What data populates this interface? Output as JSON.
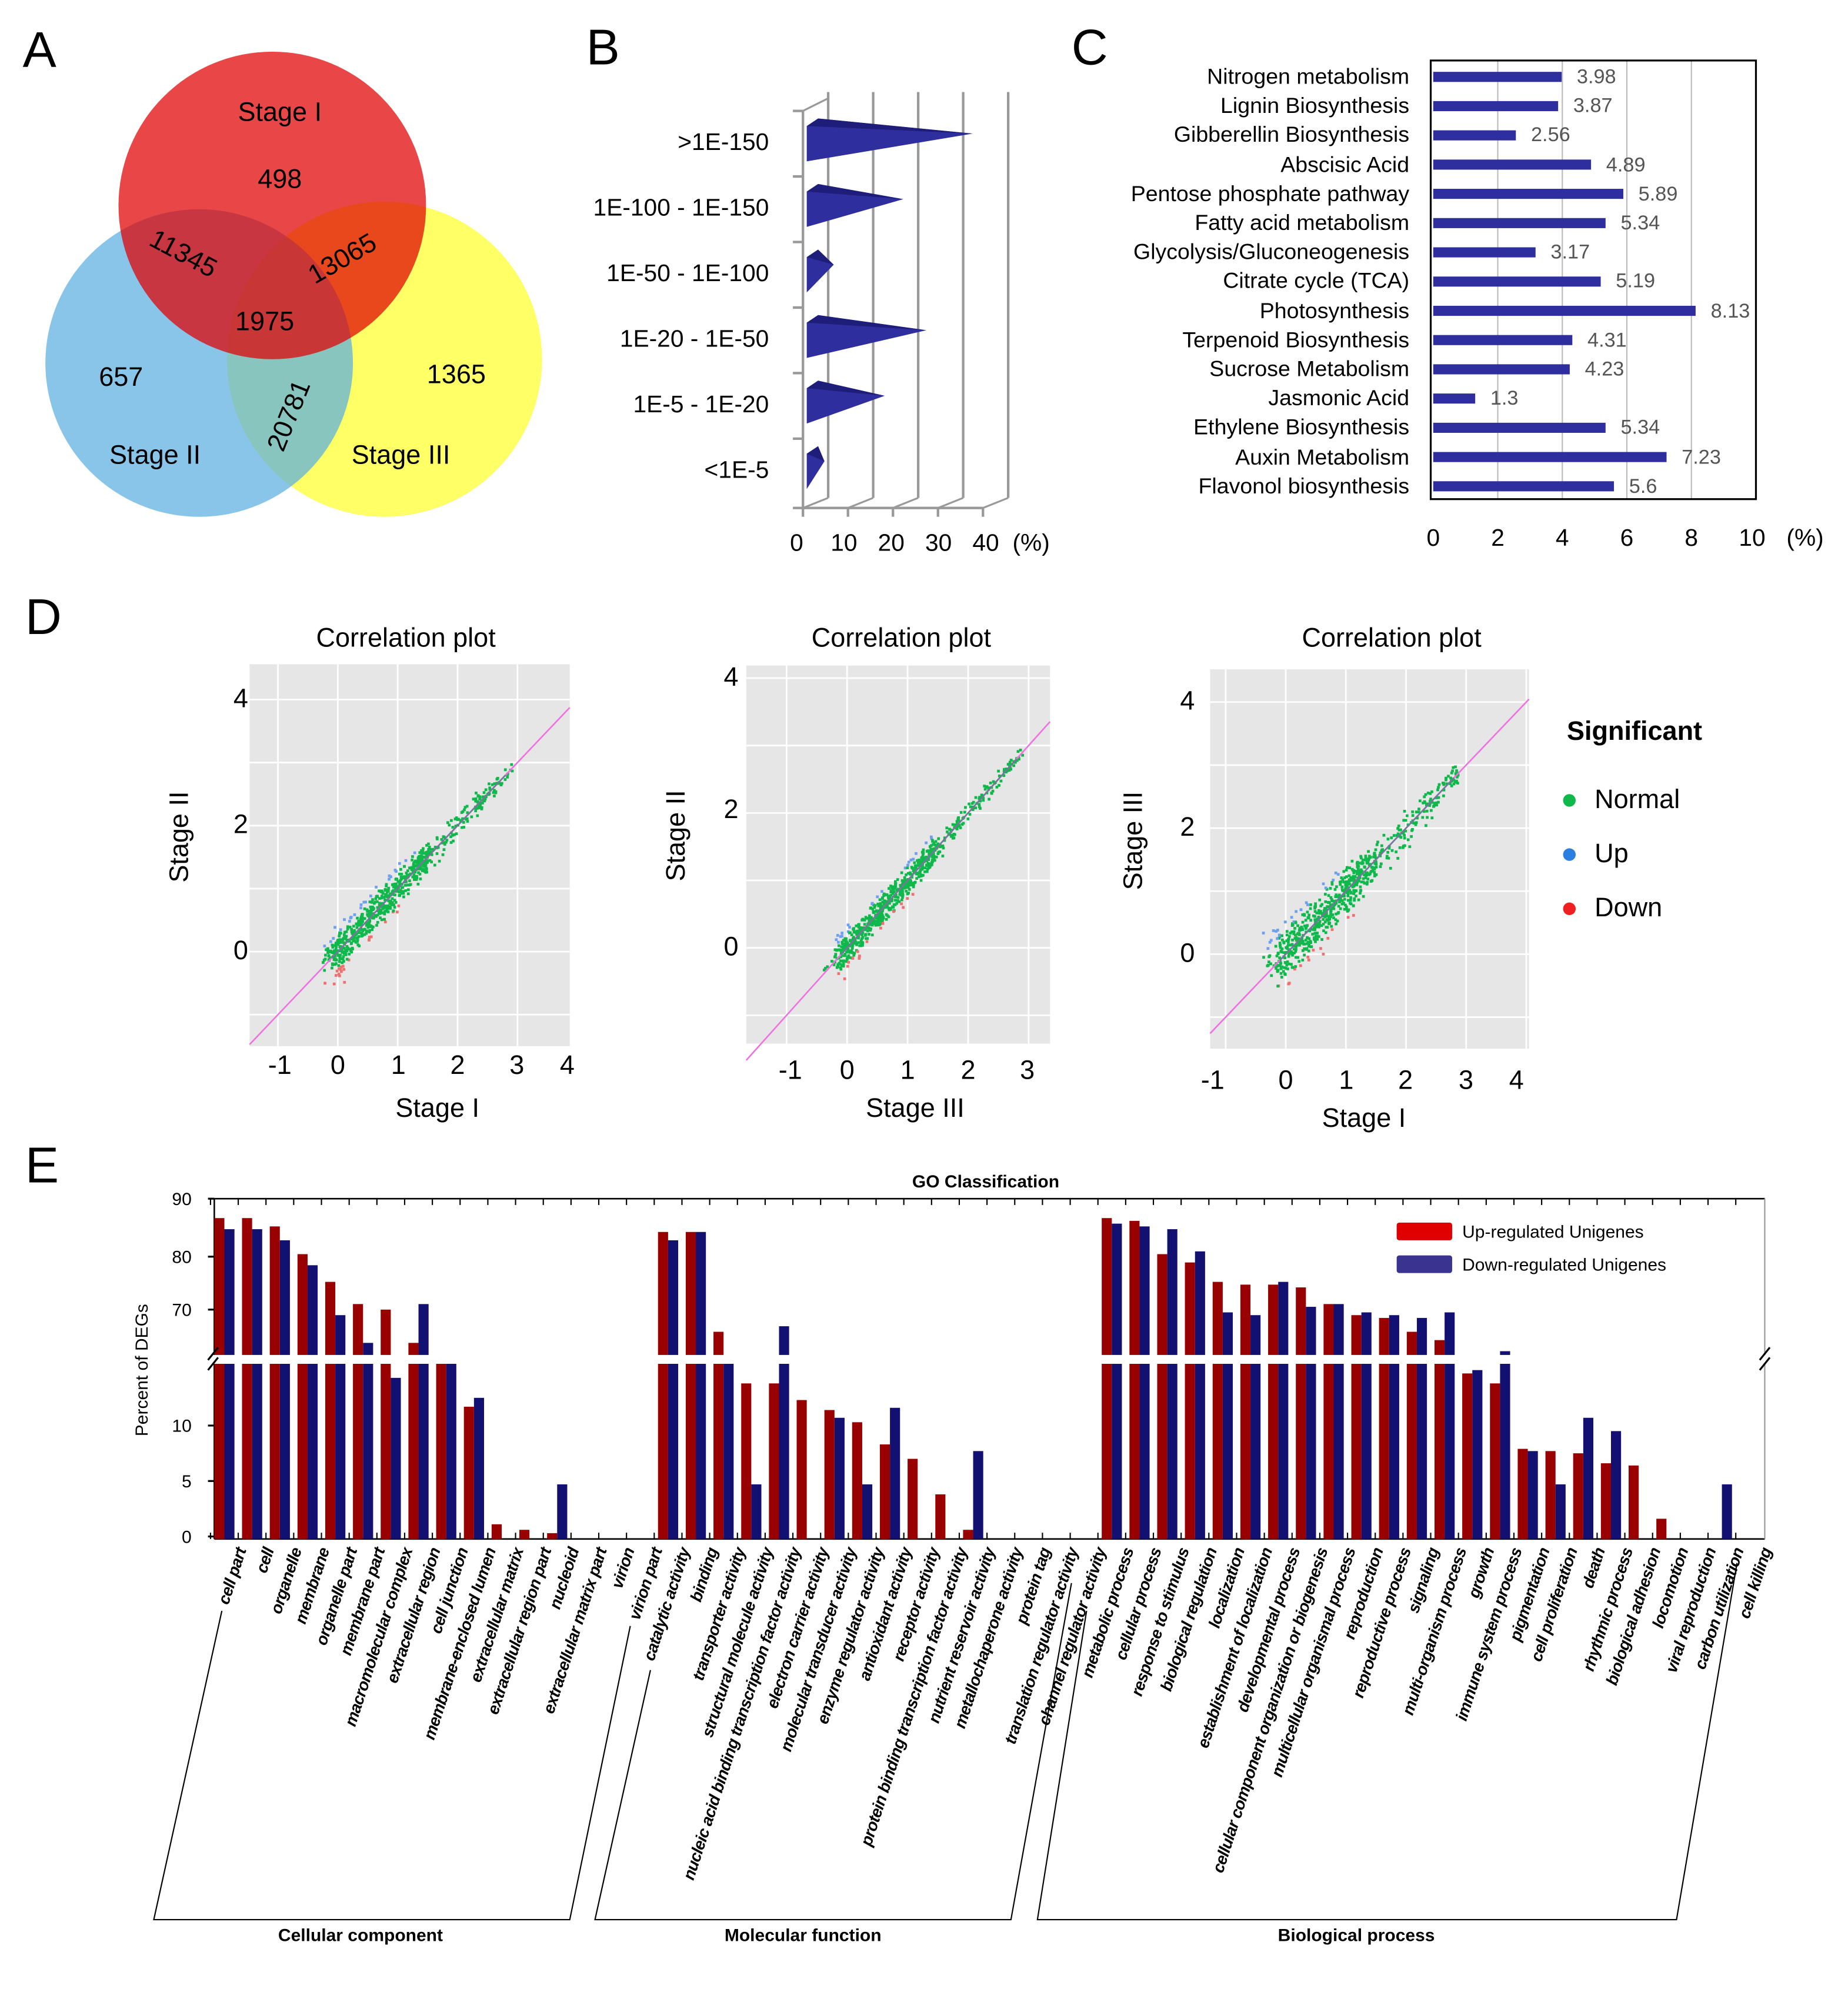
{
  "panels": {
    "a": "A",
    "b": "B",
    "c": "C",
    "d": "D",
    "e": "E"
  },
  "venn": {
    "sets": [
      "Stage I",
      "Stage II",
      "Stage III"
    ],
    "only_I": "498",
    "I_II": "11345",
    "I_III": "13065",
    "all": "1975",
    "only_II": "657",
    "only_III": "1365",
    "II_III": "20781",
    "colors": {
      "stage1": "#e00000",
      "stage2": "#5aaee0",
      "stage3": "#ffff66"
    }
  },
  "chart_data": [
    {
      "id": "B",
      "type": "bar",
      "orientation": "horizontal-3d",
      "categories": [
        ">1E-150",
        "1E-100 - 1E-150",
        "1E-50 - 1E-100",
        "1E-20 - 1E-50",
        "1E-5 - 1E-20",
        "<1E-5"
      ],
      "values": [
        35,
        20,
        5,
        25,
        16,
        3
      ],
      "xticks": [
        "0",
        "10",
        "20",
        "30",
        "40"
      ],
      "xunit": "(%)",
      "xlim": [
        0,
        40
      ],
      "color": "#2e2e9e"
    },
    {
      "id": "C",
      "type": "bar",
      "orientation": "horizontal",
      "categories": [
        "Nitrogen metabolism",
        "Lignin Biosynthesis",
        "Gibberellin Biosynthesis",
        "Abscisic Acid",
        "Pentose phosphate pathway",
        "Fatty acid metabolism",
        "Glycolysis/Gluconeogenesis",
        "Citrate cycle  (TCA)",
        "Photosynthesis",
        "Terpenoid Biosynthesis",
        "Sucrose Metabolism",
        "Jasmonic Acid",
        "Ethylene Biosynthesis",
        "Auxin Metabolism",
        "Flavonol biosynthesis"
      ],
      "values": [
        3.98,
        3.87,
        2.56,
        4.89,
        5.89,
        5.34,
        3.17,
        5.19,
        8.13,
        4.31,
        4.23,
        1.3,
        5.34,
        7.23,
        5.6
      ],
      "value_labels": [
        "3.98",
        "3.87",
        "2.56",
        "4.89",
        "5.89",
        "5.34",
        "3.17",
        "5.19",
        "8.13",
        "4.31",
        "4.23",
        "1.3",
        "5.34",
        "7.23",
        "5.6"
      ],
      "xticks": [
        "0",
        "2",
        "4",
        "6",
        "8",
        "10"
      ],
      "xunit": "(%)",
      "xlim": [
        0,
        10
      ],
      "color": "#2e2e9e"
    },
    {
      "id": "D1",
      "type": "scatter",
      "title": "Correlation plot",
      "xlabel": "Stage I",
      "ylabel": "Stage II",
      "xticks": [
        "-1",
        "0",
        "1",
        "2",
        "3",
        "4"
      ],
      "yticks": [
        "4",
        "2",
        "0"
      ],
      "xlim": [
        -1.5,
        4
      ],
      "ylim": [
        -1.5,
        4.4
      ],
      "series": [
        "Normal",
        "Up",
        "Down"
      ]
    },
    {
      "id": "D2",
      "type": "scatter",
      "title": "Correlation plot",
      "xlabel": "Stage III",
      "ylabel": "Stage II",
      "xticks": [
        "-1",
        "0",
        "1",
        "2",
        "3"
      ],
      "yticks": [
        "4",
        "2",
        "0"
      ],
      "xlim": [
        -1.7,
        3.4
      ],
      "ylim": [
        -1.4,
        4.2
      ],
      "series": [
        "Normal",
        "Up",
        "Down"
      ]
    },
    {
      "id": "D3",
      "type": "scatter",
      "title": "Correlation plot",
      "xlabel": "Stage I",
      "ylabel": "Stage III",
      "xticks": [
        "-1",
        "0",
        "1",
        "2",
        "3",
        "4"
      ],
      "yticks": [
        "4",
        "2",
        "0"
      ],
      "xlim": [
        -1.2,
        4.1
      ],
      "ylim": [
        -1.5,
        4.5
      ],
      "series": [
        "Normal",
        "Up",
        "Down"
      ]
    },
    {
      "id": "E",
      "type": "bar",
      "title": "GO Classification",
      "ylabel": "Percent of DEGs",
      "yticks_upper": [
        "90",
        "80",
        "70"
      ],
      "yticks_lower": [
        "10",
        "5",
        "0"
      ],
      "axis_break": [
        15.7,
        61.8
      ],
      "groups": [
        {
          "name": "Cellular component",
          "categories": [
            "cell part",
            "cell",
            "organelle",
            "membrane",
            "organelle part",
            "membrane part",
            "macromolecular complex",
            "extracellular region",
            "cell junction",
            "membrane-enclosed lumen",
            "extracellular matrix",
            "extracellular region part",
            "nucleoid",
            "extracellular matrix part",
            "virion",
            "virion part"
          ]
        },
        {
          "name": "Molecular function",
          "categories": [
            "catalytic activity",
            "binding",
            "transporter activity",
            "structural molecule activity",
            "nucleic acid binding transcription factor activity",
            "electron carrier activity",
            "molecular transducer activity",
            "enzyme regulator activity",
            "antioxidant activity",
            "receptor activity",
            "protein binding transcription factor activity",
            "nutrient reservoir activity",
            "metallochaperone activity",
            "protein tag",
            "translation regulator activity",
            "channel regulator activity"
          ]
        },
        {
          "name": "Biological process",
          "categories": [
            "metabolic process",
            "cellular process",
            "response to stimulus",
            "biological regulation",
            "localization",
            "establishment of localization",
            "developmental process",
            "cellular component organization or biogenesis",
            "multicellular organismal process",
            "reproduction",
            "reproductive process",
            "signaling",
            "multi-organism process",
            "growth",
            "immune system process",
            "pigmentation",
            "cell proliferation",
            "death",
            "rhythmic process",
            "biological adhesion",
            "locomotion",
            "viral reproduction",
            "carbon utilization",
            "cell killing"
          ]
        }
      ],
      "series": [
        {
          "name": "Up-regulated Unigenes",
          "color": "#990000",
          "values": [
            86.5,
            86.5,
            85,
            80,
            75,
            71,
            70,
            64,
            40,
            11.7,
            1.1,
            0.6,
            0.3,
            0,
            0,
            0,
            84,
            84,
            66,
            13.8,
            13.8,
            12.3,
            11.4,
            10.3,
            8.3,
            7,
            3.8,
            0.6,
            0,
            0,
            0,
            0,
            86.5,
            86,
            80,
            78.5,
            75,
            74.5,
            74.5,
            74,
            71,
            69,
            68.5,
            66,
            64.5,
            14.7,
            13.8,
            7.9,
            7.7,
            7.5,
            6.6,
            6.4,
            1.6,
            0,
            0,
            0
          ]
        },
        {
          "name": "Down-regulated Unigenes",
          "color": "#121070",
          "values": [
            84.5,
            84.5,
            82.5,
            78,
            69,
            64,
            14.3,
            71,
            40,
            12.5,
            0,
            0,
            4.7,
            0,
            0,
            0,
            82.5,
            84,
            40,
            4.7,
            67,
            0,
            10.7,
            4.7,
            11.6,
            0,
            0,
            7.7,
            0,
            0,
            0,
            0,
            85.5,
            85,
            84.5,
            80.5,
            69.5,
            69,
            75,
            70.5,
            71,
            69.5,
            69,
            68.5,
            69.5,
            15,
            62.5,
            7.7,
            4.7,
            10.7,
            9.5,
            0,
            0,
            0,
            4.7,
            0
          ]
        }
      ]
    }
  ],
  "legend_d": {
    "title": "Significant",
    "items": [
      {
        "label": "Normal",
        "color": "#0fb84a"
      },
      {
        "label": "Up",
        "color": "#2a7fe0"
      },
      {
        "label": "Down",
        "color": "#f02020"
      }
    ]
  }
}
